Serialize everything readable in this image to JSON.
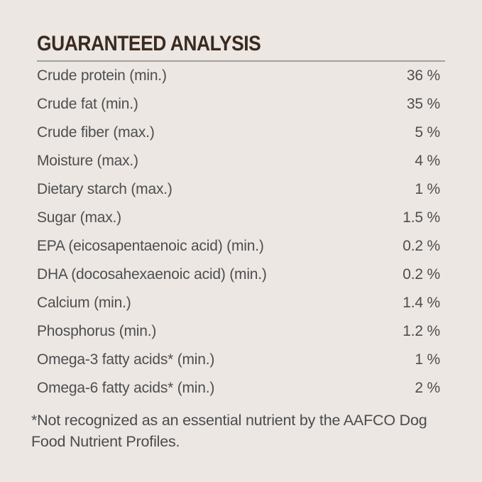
{
  "theme": {
    "background": "#ece7e2",
    "title_color": "#3a2a20",
    "divider_color": "#a5a09a",
    "text_color": "#4e4e50",
    "footnote_color": "#4b4b4e"
  },
  "header": {
    "title": "GUARANTEED ANALYSIS"
  },
  "table": {
    "rows": [
      {
        "label": "Crude protein (min.)",
        "value": "36 %"
      },
      {
        "label": "Crude fat (min.)",
        "value": "35 %"
      },
      {
        "label": "Crude fiber (max.)",
        "value": "5 %"
      },
      {
        "label": "Moisture (max.)",
        "value": "4 %"
      },
      {
        "label": "Dietary starch (max.)",
        "value": "1 %"
      },
      {
        "label": "Sugar (max.)",
        "value": "1.5 %"
      },
      {
        "label": "EPA (eicosapentaenoic acid) (min.)",
        "value": "0.2 %"
      },
      {
        "label": "DHA (docosahexaenoic acid) (min.)",
        "value": "0.2 %"
      },
      {
        "label": "Calcium (min.)",
        "value": "1.4 %"
      },
      {
        "label": "Phosphorus (min.)",
        "value": "1.2 %"
      },
      {
        "label": "Omega-3 fatty acids* (min.)",
        "value": "1 %"
      },
      {
        "label": "Omega-6 fatty acids* (min.)",
        "value": "2 %"
      }
    ]
  },
  "footnote": {
    "lines": [
      "*Not recognized as an essential nutrient by the AAFCO Dog",
      "Food Nutrient Profiles."
    ],
    "full_text": "*Not recognized as an essential nutrient by the AAFCO Dog Food Nutrient Profiles."
  }
}
